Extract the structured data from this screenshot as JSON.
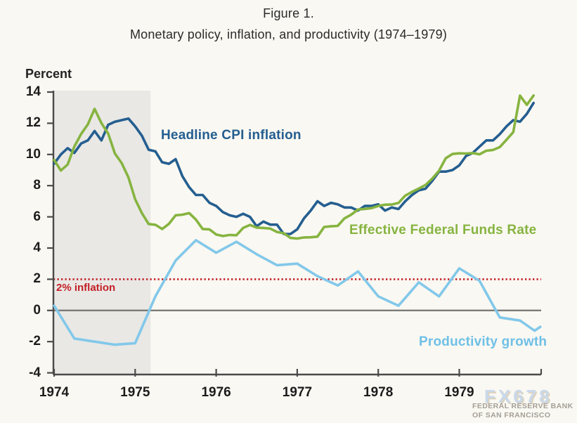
{
  "title": {
    "line1": "Figure 1.",
    "line2": "Monetary policy, inflation, and productivity (1974–1979)"
  },
  "axis": {
    "unit_label": "Percent",
    "y_ticks": [
      14,
      12,
      10,
      8,
      6,
      4,
      2,
      0,
      -2,
      -4
    ],
    "x_ticks": [
      1974,
      1975,
      1976,
      1977,
      1978,
      1979
    ],
    "x_min": 1974,
    "x_max": 1980.02,
    "y_min": -4,
    "y_max": 14
  },
  "annotations": {
    "two_percent_label": "2% inflation",
    "recession_band": {
      "x_start": 1974.0,
      "x_end": 1975.19,
      "meaning": "recession shading"
    }
  },
  "watermark": {
    "brand": "FX678",
    "org_line1": "FEDERAL RESERVE BANK",
    "org_line2": "OF SAN FRANCISCO"
  },
  "colors": {
    "background": "#faf8f2",
    "cpi_blue": "#245e90",
    "ffr_green": "#86b440",
    "productivity_light_blue": "#82c8ea",
    "productivity_label": "#6fc0e7",
    "reference_red": "#c32026",
    "zero_line_gray": "#7b7b78",
    "axis_gray": "#4a4a4a",
    "recession_band_gray": "#e9e8e5",
    "watermark_blue": "#c9d8ea",
    "watermark_gray": "#a39f97"
  },
  "chart_data": {
    "type": "line",
    "title": "Monetary policy, inflation, and productivity (1974–1979)",
    "xlabel": "",
    "ylabel": "Percent",
    "xlim": [
      1974,
      1980.02
    ],
    "ylim": [
      -4,
      14
    ],
    "grid": false,
    "legend_position": "inline-labels",
    "reference_lines": [
      {
        "label": "2% inflation",
        "value": 2,
        "style": "dotted",
        "color": "#c32026"
      },
      {
        "label": "zero line",
        "value": 0,
        "style": "solid",
        "color": "#7b7b78"
      }
    ],
    "shaded_region": {
      "x_start": 1974.0,
      "x_end": 1975.19,
      "color": "#e9e8e5",
      "meaning": "recession"
    },
    "series": [
      {
        "name": "Headline CPI inflation",
        "color": "#245e90",
        "frequency": "monthly",
        "x_start": 1974.0,
        "x_step": 0.08333,
        "values": [
          9.4,
          10.0,
          10.4,
          10.1,
          10.7,
          10.9,
          11.5,
          10.9,
          11.9,
          12.1,
          12.2,
          12.3,
          11.8,
          11.2,
          10.3,
          10.2,
          9.5,
          9.4,
          9.7,
          8.6,
          7.9,
          7.4,
          7.4,
          6.9,
          6.7,
          6.3,
          6.1,
          6.0,
          6.2,
          6.0,
          5.4,
          5.7,
          5.5,
          5.5,
          4.9,
          4.9,
          5.2,
          5.9,
          6.4,
          7.0,
          6.7,
          6.9,
          6.8,
          6.6,
          6.6,
          6.4,
          6.7,
          6.7,
          6.8,
          6.4,
          6.6,
          6.5,
          7.0,
          7.4,
          7.7,
          7.8,
          8.3,
          8.9,
          8.9,
          9.0,
          9.3,
          9.9,
          10.1,
          10.5,
          10.9,
          10.9,
          11.3,
          11.8,
          12.2,
          12.1,
          12.6,
          13.3
        ]
      },
      {
        "name": "Effective Federal Funds Rate",
        "color": "#86b440",
        "frequency": "monthly",
        "x_start": 1974.0,
        "x_step": 0.08333,
        "values": [
          9.65,
          8.97,
          9.35,
          10.51,
          11.31,
          11.93,
          12.92,
          12.01,
          11.34,
          10.06,
          9.45,
          8.53,
          7.13,
          6.24,
          5.54,
          5.49,
          5.22,
          5.55,
          6.1,
          6.14,
          6.24,
          5.82,
          5.22,
          5.2,
          4.87,
          4.77,
          4.84,
          4.82,
          5.29,
          5.48,
          5.31,
          5.29,
          5.25,
          5.03,
          4.95,
          4.65,
          4.61,
          4.68,
          4.69,
          4.73,
          5.35,
          5.39,
          5.42,
          5.9,
          6.14,
          6.47,
          6.51,
          6.56,
          6.7,
          6.78,
          6.79,
          6.89,
          7.36,
          7.6,
          7.81,
          8.04,
          8.45,
          8.96,
          9.76,
          10.03,
          10.07,
          10.06,
          10.09,
          10.01,
          10.24,
          10.29,
          10.47,
          10.94,
          11.43,
          13.77,
          13.18,
          13.78
        ]
      },
      {
        "name": "Productivity growth",
        "color": "#82c8ea",
        "frequency": "quarterly",
        "x": [
          1974.0,
          1974.25,
          1974.5,
          1974.75,
          1975.0,
          1975.25,
          1975.5,
          1975.75,
          1976.0,
          1976.25,
          1976.5,
          1976.75,
          1977.0,
          1977.25,
          1977.5,
          1977.75,
          1978.0,
          1978.25,
          1978.5,
          1978.75,
          1979.0,
          1979.25,
          1979.5,
          1979.75,
          1979.93,
          1980.0
        ],
        "values": [
          0.3,
          -1.8,
          -2.0,
          -2.2,
          -2.1,
          0.9,
          3.2,
          4.5,
          3.7,
          4.4,
          3.6,
          2.9,
          3.0,
          2.2,
          1.6,
          2.5,
          0.9,
          0.3,
          1.8,
          0.9,
          2.7,
          1.9,
          -0.45,
          -0.65,
          -1.3,
          -1.05
        ]
      }
    ]
  }
}
